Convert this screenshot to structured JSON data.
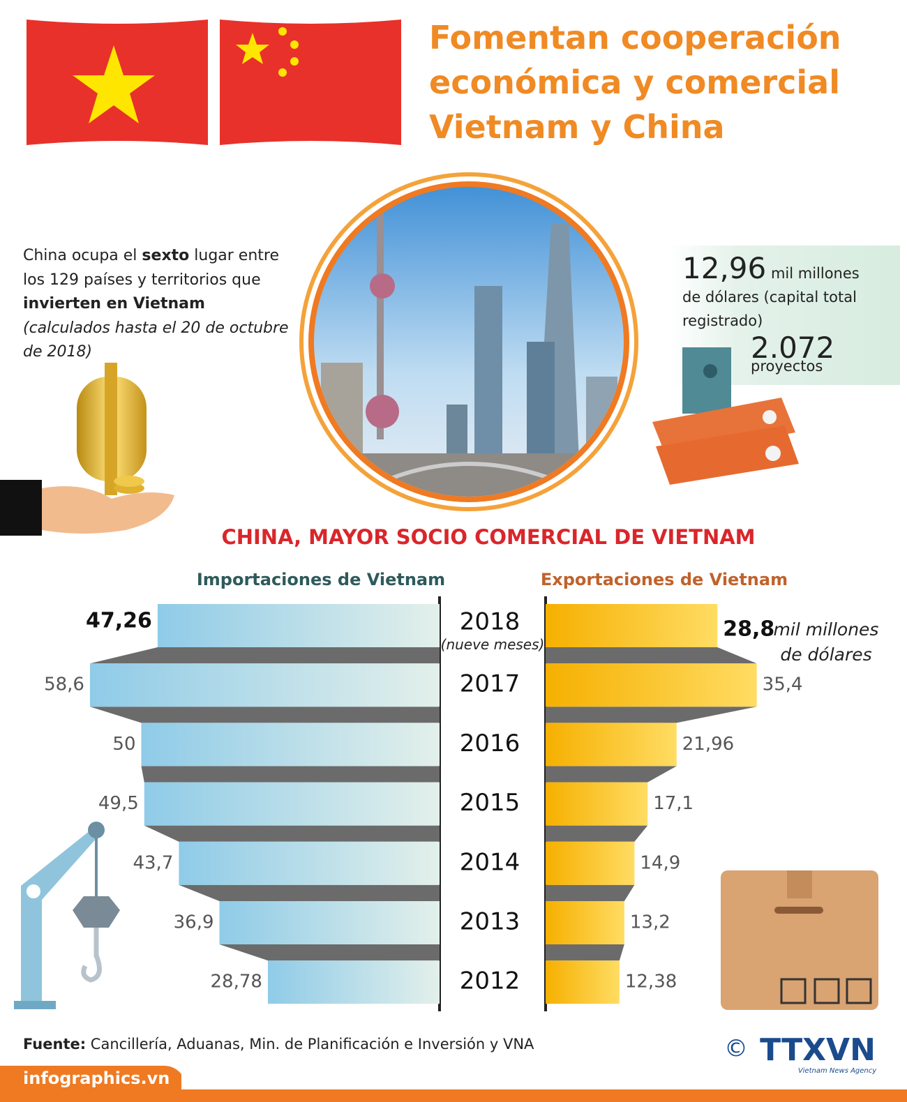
{
  "header": {
    "title_lines": [
      "Fomentan cooperación",
      "económica y comercial",
      "Vietnam y China"
    ]
  },
  "intro": {
    "segments": [
      "China ocupa el ",
      "sexto",
      " lugar entre los 129 países y territorios que ",
      "invierten en Vietnam"
    ],
    "note": "(calculados hasta el 20 de octubre de 2018)"
  },
  "investment": {
    "capital": "12,96",
    "capital_unit": "mil millones",
    "capital_desc": "de dólares (capital total registrado)",
    "projects": "2.072",
    "projects_label": "proyectos"
  },
  "chart_data": {
    "type": "butterfly-bar",
    "title": "CHINA, MAYOR SOCIO COMERCIAL DE VIETNAM",
    "categories": [
      "2018",
      "2017",
      "2016",
      "2015",
      "2014",
      "2013",
      "2012"
    ],
    "category_note": "(nueve meses)",
    "unit": "mil millones de dólares",
    "series": [
      {
        "name": "Importaciones de Vietnam",
        "color": "#8fcbe8",
        "values": [
          47.26,
          58.6,
          50,
          49.5,
          43.7,
          36.9,
          28.78
        ],
        "value_labels": [
          "47,26",
          "58,6",
          "50",
          "49,5",
          "43,7",
          "36,9",
          "28,78"
        ]
      },
      {
        "name": "Exportaciones de Vietnam",
        "color": "#f8b800",
        "values": [
          28.8,
          35.4,
          21.96,
          17.1,
          14.9,
          13.2,
          12.38
        ],
        "value_labels": [
          "28,8",
          "35,4",
          "21,96",
          "17,1",
          "14,9",
          "13,2",
          "12,38"
        ]
      }
    ]
  },
  "footer": {
    "source_label": "Fuente:",
    "source": " Cancillería, Aduanas, Min. de Planificación e Inversión y VNA",
    "site": "infographics.vn",
    "copyright": "©",
    "agency": "TTXVN",
    "agency_sub": "Vietnam News Agency"
  }
}
